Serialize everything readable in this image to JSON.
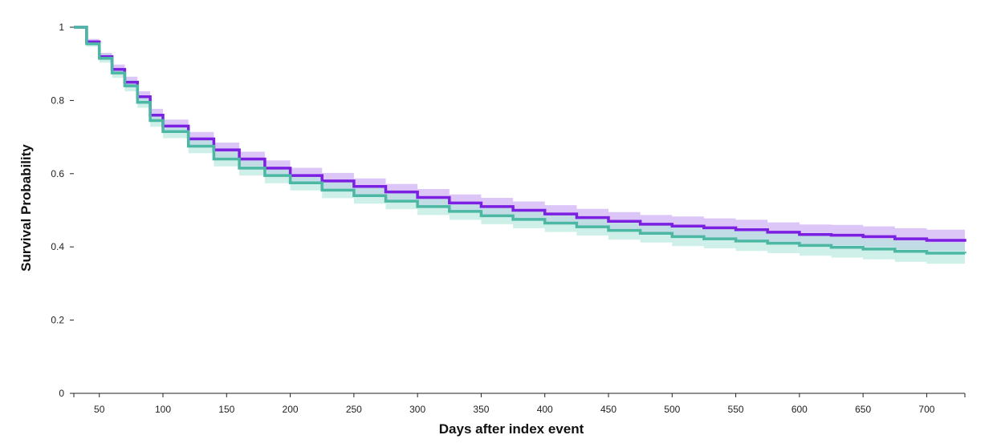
{
  "chart_data": {
    "type": "line",
    "xlabel": "Days after index event",
    "ylabel": "Survival Probability",
    "xlim": [
      30,
      730
    ],
    "ylim": [
      0,
      1
    ],
    "x_ticks": [
      50,
      100,
      150,
      200,
      250,
      300,
      350,
      400,
      450,
      500,
      550,
      600,
      650,
      700
    ],
    "y_ticks": [
      0,
      0.2,
      0.4,
      0.6,
      0.8,
      1
    ],
    "y_tick_labels": [
      "0",
      "0.2",
      "0.4",
      "0.6",
      "0.8",
      "1"
    ],
    "x": [
      30,
      40,
      50,
      60,
      70,
      80,
      90,
      100,
      120,
      140,
      160,
      180,
      200,
      225,
      250,
      275,
      300,
      325,
      350,
      375,
      400,
      425,
      450,
      475,
      500,
      525,
      550,
      575,
      600,
      625,
      650,
      675,
      700,
      730
    ],
    "series": [
      {
        "color": "#7b1fe0",
        "band_color": "#c9a6f2",
        "values": [
          1.0,
          0.96,
          0.92,
          0.885,
          0.85,
          0.81,
          0.76,
          0.73,
          0.695,
          0.665,
          0.64,
          0.615,
          0.595,
          0.58,
          0.565,
          0.55,
          0.535,
          0.52,
          0.51,
          0.5,
          0.49,
          0.48,
          0.47,
          0.462,
          0.457,
          0.452,
          0.447,
          0.44,
          0.434,
          0.432,
          0.428,
          0.422,
          0.418,
          0.414
        ],
        "lower": [
          1.0,
          0.952,
          0.91,
          0.872,
          0.835,
          0.795,
          0.743,
          0.712,
          0.676,
          0.645,
          0.62,
          0.594,
          0.574,
          0.558,
          0.543,
          0.528,
          0.512,
          0.497,
          0.486,
          0.476,
          0.466,
          0.456,
          0.445,
          0.437,
          0.431,
          0.426,
          0.42,
          0.413,
          0.407,
          0.404,
          0.4,
          0.393,
          0.389,
          0.384
        ],
        "upper": [
          1.0,
          0.968,
          0.93,
          0.898,
          0.865,
          0.825,
          0.777,
          0.748,
          0.714,
          0.685,
          0.66,
          0.636,
          0.616,
          0.602,
          0.587,
          0.572,
          0.558,
          0.543,
          0.534,
          0.524,
          0.514,
          0.504,
          0.495,
          0.487,
          0.483,
          0.478,
          0.474,
          0.467,
          0.461,
          0.46,
          0.456,
          0.451,
          0.447,
          0.444
        ]
      },
      {
        "color": "#4cb8a4",
        "band_color": "#b3e8dc",
        "values": [
          1.0,
          0.955,
          0.915,
          0.875,
          0.84,
          0.795,
          0.745,
          0.715,
          0.675,
          0.64,
          0.615,
          0.595,
          0.575,
          0.555,
          0.54,
          0.525,
          0.51,
          0.497,
          0.485,
          0.475,
          0.465,
          0.455,
          0.445,
          0.437,
          0.428,
          0.422,
          0.416,
          0.41,
          0.404,
          0.399,
          0.394,
          0.388,
          0.383,
          0.382
        ],
        "lower": [
          1.0,
          0.947,
          0.903,
          0.862,
          0.825,
          0.78,
          0.728,
          0.697,
          0.656,
          0.62,
          0.595,
          0.574,
          0.554,
          0.533,
          0.518,
          0.503,
          0.487,
          0.474,
          0.462,
          0.451,
          0.441,
          0.431,
          0.42,
          0.412,
          0.402,
          0.396,
          0.389,
          0.383,
          0.376,
          0.371,
          0.366,
          0.359,
          0.354,
          0.352
        ],
        "upper": [
          1.0,
          0.963,
          0.927,
          0.888,
          0.855,
          0.81,
          0.762,
          0.733,
          0.694,
          0.66,
          0.635,
          0.616,
          0.596,
          0.577,
          0.562,
          0.547,
          0.533,
          0.52,
          0.508,
          0.499,
          0.489,
          0.479,
          0.47,
          0.462,
          0.454,
          0.448,
          0.443,
          0.437,
          0.432,
          0.427,
          0.422,
          0.417,
          0.412,
          0.412
        ]
      }
    ]
  }
}
